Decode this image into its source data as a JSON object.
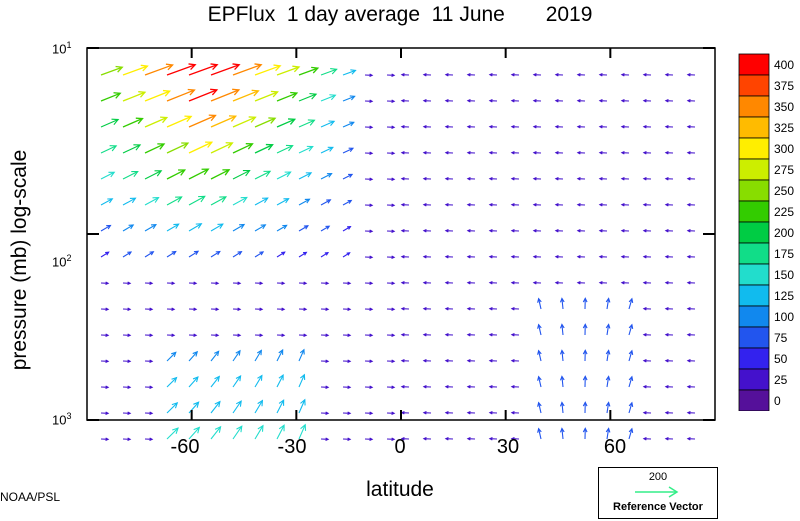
{
  "title": "EPFlux  1 day average  11 June       2019",
  "credit": "NOAA/PSL",
  "chart_data": {
    "type": "quiver",
    "title": "EPFlux  1 day average  11 June       2019",
    "xlabel": "latitude",
    "ylabel": "pressure (mb)  log-scale",
    "xlim": [
      -90,
      90
    ],
    "ylim": [
      1000,
      10
    ],
    "y_scale": "log",
    "x_ticks": [
      "-60",
      "-30",
      "0",
      "30",
      "60"
    ],
    "x_tick_values": [
      -60,
      -30,
      0,
      30,
      60
    ],
    "y_ticks": [
      {
        "base": "10",
        "exp": "1"
      },
      {
        "base": "10",
        "exp": "2"
      },
      {
        "base": "10",
        "exp": "3"
      }
    ],
    "y_tick_values": [
      10,
      100,
      1000
    ],
    "reference_vector": {
      "value": "200",
      "label": "Reference Vector",
      "color": "#33ee88"
    },
    "colorbar": {
      "levels": [
        "400",
        "375",
        "350",
        "325",
        "300",
        "275",
        "250",
        "225",
        "200",
        "175",
        "150",
        "125",
        "100",
        "75",
        "50",
        "25",
        "0"
      ],
      "colors": [
        "#ff0000",
        "#ff4400",
        "#ff8800",
        "#ffbb00",
        "#ffee00",
        "#ccee00",
        "#88dd00",
        "#33cc00",
        "#00cc44",
        "#11dd88",
        "#22ddcc",
        "#11bbee",
        "#1188ee",
        "#2255ee",
        "#3322ee",
        "#4411cc",
        "#55109a"
      ]
    },
    "vector_field_summary": "Strong upward-equatorward flux (up to ~400) in Southern Hemisphere stratosphere between 90S-20S near 10-30 mb; moderate upward flux near surface 60S-30S and 45N-65N; weak vectors elsewhere."
  }
}
